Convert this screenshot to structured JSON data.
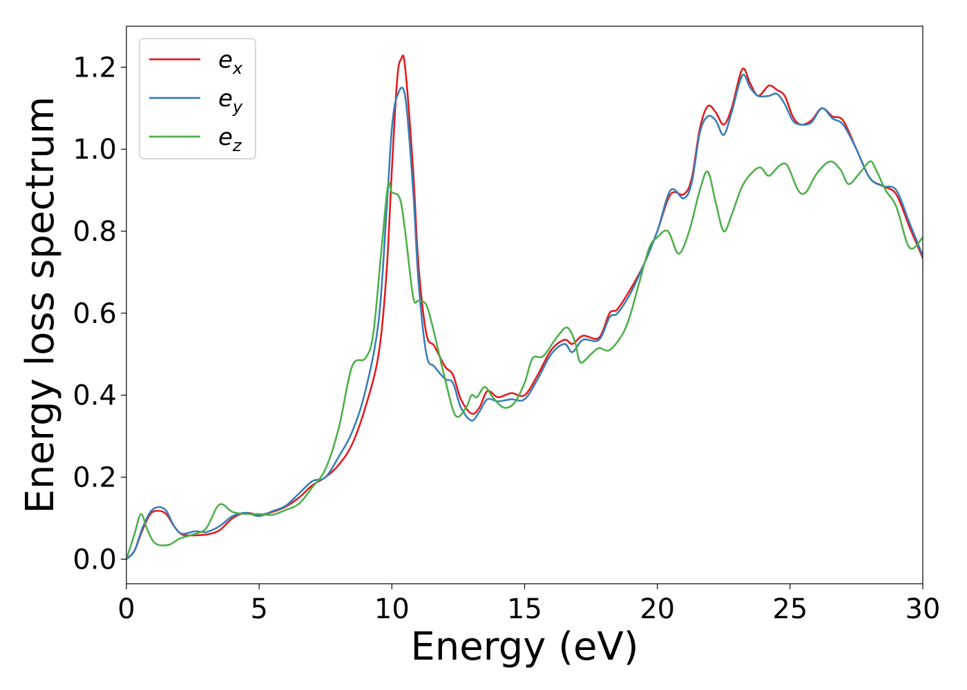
{
  "chart_data": {
    "type": "line",
    "title": "",
    "xlabel": "Energy (eV)",
    "ylabel": "Energy loss spectrum",
    "xlim": [
      0,
      30
    ],
    "ylim": [
      -0.06,
      1.3
    ],
    "x_ticks": [
      0,
      5,
      10,
      15,
      20,
      25,
      30
    ],
    "x_tick_labels": [
      "0",
      "5",
      "10",
      "15",
      "20",
      "25",
      "30"
    ],
    "y_ticks": [
      0.0,
      0.2,
      0.4,
      0.6,
      0.8,
      1.0,
      1.2
    ],
    "y_tick_labels": [
      "0.0",
      "0.2",
      "0.4",
      "0.6",
      "0.8",
      "1.0",
      "1.2"
    ],
    "grid": false,
    "legend_position": "top-left",
    "series": [
      {
        "name": "e",
        "subscript": "x",
        "color": "#e41a1c",
        "points": [
          [
            0,
            0
          ],
          [
            0.3,
            0.02
          ],
          [
            0.6,
            0.07
          ],
          [
            0.9,
            0.11
          ],
          [
            1.2,
            0.118
          ],
          [
            1.5,
            0.11
          ],
          [
            1.8,
            0.08
          ],
          [
            2.1,
            0.06
          ],
          [
            2.5,
            0.058
          ],
          [
            3.0,
            0.06
          ],
          [
            3.5,
            0.07
          ],
          [
            4.0,
            0.1
          ],
          [
            4.5,
            0.113
          ],
          [
            5.0,
            0.108
          ],
          [
            5.5,
            0.115
          ],
          [
            6.0,
            0.128
          ],
          [
            6.5,
            0.15
          ],
          [
            7.0,
            0.18
          ],
          [
            7.5,
            0.2
          ],
          [
            8.0,
            0.23
          ],
          [
            8.5,
            0.28
          ],
          [
            9.0,
            0.37
          ],
          [
            9.5,
            0.5
          ],
          [
            9.8,
            0.7
          ],
          [
            10.0,
            0.95
          ],
          [
            10.2,
            1.17
          ],
          [
            10.35,
            1.22
          ],
          [
            10.5,
            1.2
          ],
          [
            10.8,
            0.95
          ],
          [
            11.0,
            0.72
          ],
          [
            11.3,
            0.55
          ],
          [
            11.6,
            0.52
          ],
          [
            12.0,
            0.47
          ],
          [
            12.3,
            0.45
          ],
          [
            12.6,
            0.39
          ],
          [
            13.0,
            0.355
          ],
          [
            13.3,
            0.37
          ],
          [
            13.6,
            0.41
          ],
          [
            14.0,
            0.395
          ],
          [
            14.5,
            0.405
          ],
          [
            15.0,
            0.4
          ],
          [
            15.5,
            0.45
          ],
          [
            16.0,
            0.51
          ],
          [
            16.5,
            0.535
          ],
          [
            16.8,
            0.525
          ],
          [
            17.2,
            0.545
          ],
          [
            17.8,
            0.54
          ],
          [
            18.2,
            0.6
          ],
          [
            18.5,
            0.61
          ],
          [
            19.0,
            0.66
          ],
          [
            19.5,
            0.72
          ],
          [
            20.0,
            0.8
          ],
          [
            20.5,
            0.89
          ],
          [
            21.0,
            0.89
          ],
          [
            21.3,
            0.93
          ],
          [
            21.6,
            1.05
          ],
          [
            21.9,
            1.105
          ],
          [
            22.2,
            1.09
          ],
          [
            22.5,
            1.06
          ],
          [
            22.8,
            1.1
          ],
          [
            23.2,
            1.195
          ],
          [
            23.5,
            1.16
          ],
          [
            23.8,
            1.13
          ],
          [
            24.2,
            1.155
          ],
          [
            24.5,
            1.145
          ],
          [
            24.8,
            1.13
          ],
          [
            25.1,
            1.08
          ],
          [
            25.4,
            1.06
          ],
          [
            25.8,
            1.07
          ],
          [
            26.2,
            1.1
          ],
          [
            26.6,
            1.08
          ],
          [
            27.0,
            1.07
          ],
          [
            27.5,
            1.0
          ],
          [
            28.0,
            0.93
          ],
          [
            28.5,
            0.91
          ],
          [
            29.0,
            0.89
          ],
          [
            29.5,
            0.81
          ],
          [
            30.0,
            0.735
          ]
        ]
      },
      {
        "name": "e",
        "subscript": "y",
        "color": "#377eb8",
        "points": [
          [
            0,
            0
          ],
          [
            0.3,
            0.02
          ],
          [
            0.6,
            0.075
          ],
          [
            0.9,
            0.115
          ],
          [
            1.2,
            0.127
          ],
          [
            1.5,
            0.118
          ],
          [
            1.8,
            0.08
          ],
          [
            2.1,
            0.062
          ],
          [
            2.6,
            0.068
          ],
          [
            3.0,
            0.066
          ],
          [
            3.5,
            0.08
          ],
          [
            4.0,
            0.105
          ],
          [
            4.5,
            0.113
          ],
          [
            5.0,
            0.105
          ],
          [
            5.5,
            0.117
          ],
          [
            6.0,
            0.13
          ],
          [
            6.5,
            0.16
          ],
          [
            7.0,
            0.19
          ],
          [
            7.5,
            0.2
          ],
          [
            8.0,
            0.25
          ],
          [
            8.5,
            0.31
          ],
          [
            9.0,
            0.41
          ],
          [
            9.5,
            0.58
          ],
          [
            9.8,
            0.85
          ],
          [
            10.0,
            1.05
          ],
          [
            10.2,
            1.13
          ],
          [
            10.5,
            1.13
          ],
          [
            10.8,
            0.9
          ],
          [
            11.0,
            0.68
          ],
          [
            11.3,
            0.5
          ],
          [
            11.6,
            0.47
          ],
          [
            12.0,
            0.44
          ],
          [
            12.3,
            0.43
          ],
          [
            12.6,
            0.37
          ],
          [
            13.0,
            0.338
          ],
          [
            13.3,
            0.36
          ],
          [
            13.6,
            0.39
          ],
          [
            14.0,
            0.385
          ],
          [
            14.5,
            0.39
          ],
          [
            15.0,
            0.39
          ],
          [
            15.5,
            0.44
          ],
          [
            16.0,
            0.5
          ],
          [
            16.5,
            0.525
          ],
          [
            16.8,
            0.505
          ],
          [
            17.2,
            0.535
          ],
          [
            17.8,
            0.535
          ],
          [
            18.2,
            0.59
          ],
          [
            18.5,
            0.6
          ],
          [
            19.0,
            0.65
          ],
          [
            19.5,
            0.72
          ],
          [
            20.0,
            0.8
          ],
          [
            20.5,
            0.9
          ],
          [
            21.0,
            0.88
          ],
          [
            21.3,
            0.92
          ],
          [
            21.6,
            1.04
          ],
          [
            21.9,
            1.08
          ],
          [
            22.2,
            1.07
          ],
          [
            22.5,
            1.035
          ],
          [
            22.8,
            1.09
          ],
          [
            23.2,
            1.18
          ],
          [
            23.5,
            1.15
          ],
          [
            23.8,
            1.13
          ],
          [
            24.2,
            1.13
          ],
          [
            24.5,
            1.135
          ],
          [
            24.8,
            1.11
          ],
          [
            25.1,
            1.07
          ],
          [
            25.4,
            1.06
          ],
          [
            25.8,
            1.065
          ],
          [
            26.2,
            1.1
          ],
          [
            26.6,
            1.075
          ],
          [
            27.0,
            1.06
          ],
          [
            27.5,
            1.0
          ],
          [
            28.0,
            0.93
          ],
          [
            28.5,
            0.91
          ],
          [
            29.0,
            0.9
          ],
          [
            29.5,
            0.82
          ],
          [
            30.0,
            0.74
          ]
        ]
      },
      {
        "name": "e",
        "subscript": "z",
        "color": "#4daf4a",
        "points": [
          [
            0,
            0
          ],
          [
            0.3,
            0.06
          ],
          [
            0.55,
            0.11
          ],
          [
            0.8,
            0.07
          ],
          [
            1.1,
            0.038
          ],
          [
            1.6,
            0.035
          ],
          [
            2.0,
            0.05
          ],
          [
            2.5,
            0.06
          ],
          [
            3.0,
            0.075
          ],
          [
            3.5,
            0.133
          ],
          [
            4.0,
            0.115
          ],
          [
            4.5,
            0.11
          ],
          [
            5.0,
            0.11
          ],
          [
            5.5,
            0.108
          ],
          [
            6.0,
            0.12
          ],
          [
            6.5,
            0.135
          ],
          [
            7.0,
            0.175
          ],
          [
            7.5,
            0.22
          ],
          [
            8.0,
            0.32
          ],
          [
            8.5,
            0.47
          ],
          [
            9.0,
            0.49
          ],
          [
            9.3,
            0.55
          ],
          [
            9.6,
            0.75
          ],
          [
            9.85,
            0.91
          ],
          [
            10.0,
            0.895
          ],
          [
            10.3,
            0.88
          ],
          [
            10.5,
            0.8
          ],
          [
            10.8,
            0.64
          ],
          [
            11.0,
            0.63
          ],
          [
            11.3,
            0.62
          ],
          [
            11.6,
            0.55
          ],
          [
            12.0,
            0.44
          ],
          [
            12.4,
            0.35
          ],
          [
            12.8,
            0.37
          ],
          [
            13.0,
            0.4
          ],
          [
            13.2,
            0.395
          ],
          [
            13.5,
            0.42
          ],
          [
            13.8,
            0.395
          ],
          [
            14.2,
            0.37
          ],
          [
            14.6,
            0.38
          ],
          [
            15.0,
            0.43
          ],
          [
            15.3,
            0.49
          ],
          [
            15.7,
            0.495
          ],
          [
            16.2,
            0.54
          ],
          [
            16.6,
            0.565
          ],
          [
            16.9,
            0.53
          ],
          [
            17.1,
            0.48
          ],
          [
            17.5,
            0.5
          ],
          [
            17.8,
            0.515
          ],
          [
            18.2,
            0.51
          ],
          [
            18.7,
            0.55
          ],
          [
            19.0,
            0.6
          ],
          [
            19.3,
            0.67
          ],
          [
            19.7,
            0.76
          ],
          [
            20.0,
            0.785
          ],
          [
            20.4,
            0.8
          ],
          [
            20.8,
            0.745
          ],
          [
            21.2,
            0.8
          ],
          [
            21.6,
            0.9
          ],
          [
            21.9,
            0.945
          ],
          [
            22.2,
            0.87
          ],
          [
            22.5,
            0.8
          ],
          [
            22.8,
            0.84
          ],
          [
            23.2,
            0.91
          ],
          [
            23.6,
            0.945
          ],
          [
            23.9,
            0.955
          ],
          [
            24.2,
            0.935
          ],
          [
            24.6,
            0.96
          ],
          [
            24.9,
            0.96
          ],
          [
            25.3,
            0.9
          ],
          [
            25.6,
            0.895
          ],
          [
            26.0,
            0.94
          ],
          [
            26.5,
            0.97
          ],
          [
            26.9,
            0.95
          ],
          [
            27.2,
            0.915
          ],
          [
            27.6,
            0.94
          ],
          [
            28.0,
            0.97
          ],
          [
            28.2,
            0.955
          ],
          [
            28.6,
            0.9
          ],
          [
            29.0,
            0.86
          ],
          [
            29.5,
            0.76
          ],
          [
            30.0,
            0.785
          ]
        ]
      }
    ]
  }
}
